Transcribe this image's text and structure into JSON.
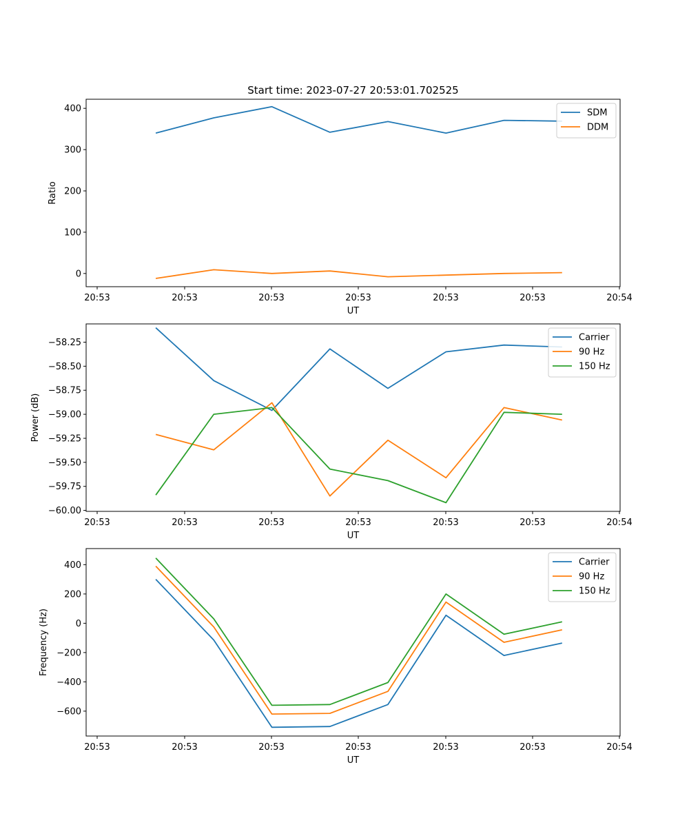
{
  "title": "Start time: 2023-07-27 20:53:01.702525",
  "colors": {
    "blue": "#1f77b4",
    "orange": "#ff7f0e",
    "green": "#2ca02c"
  },
  "chart_data": [
    {
      "type": "line",
      "xlabel": "UT",
      "ylabel": "Ratio",
      "x_tick_labels": [
        "20:53",
        "20:53",
        "20:53",
        "20:53",
        "20:53",
        "20:53",
        "20:54"
      ],
      "x": [
        1,
        2,
        3,
        4,
        5,
        6,
        7,
        8
      ],
      "xlim": [
        -0.2,
        9.0
      ],
      "ylim": [
        -32,
        422
      ],
      "y_ticks": [
        0,
        100,
        200,
        300,
        400
      ],
      "legend_position": "top-right",
      "series": [
        {
          "name": "SDM",
          "color": "#1f77b4",
          "values": [
            340,
            377,
            404,
            342,
            368,
            340,
            371,
            369
          ]
        },
        {
          "name": "DDM",
          "color": "#ff7f0e",
          "values": [
            -12,
            9,
            0,
            6,
            -8,
            -4,
            0,
            2
          ]
        }
      ]
    },
    {
      "type": "line",
      "xlabel": "UT",
      "ylabel": "Power (dB)",
      "x_tick_labels": [
        "20:53",
        "20:53",
        "20:53",
        "20:53",
        "20:53",
        "20:53",
        "20:54"
      ],
      "x": [
        1,
        2,
        3,
        4,
        5,
        6,
        7,
        8
      ],
      "xlim": [
        -0.2,
        9.0
      ],
      "ylim": [
        -60.01,
        -58.06
      ],
      "y_ticks": [
        -58.25,
        -58.5,
        -58.75,
        -59.0,
        -59.25,
        -59.5,
        -59.75,
        -60.0
      ],
      "y_tick_labels": [
        "−58.25",
        "−58.50",
        "−58.75",
        "−59.00",
        "−59.25",
        "−59.50",
        "−59.75",
        "−60.00"
      ],
      "legend_position": "top-right",
      "series": [
        {
          "name": "Carrier",
          "color": "#1f77b4",
          "values": [
            -58.1,
            -58.65,
            -58.96,
            -58.32,
            -58.73,
            -58.35,
            -58.28,
            -58.3
          ]
        },
        {
          "name": "90 Hz",
          "color": "#ff7f0e",
          "values": [
            -59.21,
            -59.37,
            -58.88,
            -59.85,
            -59.27,
            -59.66,
            -58.93,
            -59.06
          ]
        },
        {
          "name": "150 Hz",
          "color": "#2ca02c",
          "values": [
            -59.84,
            -59.0,
            -58.93,
            -59.57,
            -59.69,
            -59.92,
            -58.98,
            -59.0
          ]
        }
      ]
    },
    {
      "type": "line",
      "xlabel": "UT",
      "ylabel": "Frequency (Hz)",
      "x_tick_labels": [
        "20:53",
        "20:53",
        "20:53",
        "20:53",
        "20:53",
        "20:53",
        "20:54"
      ],
      "x": [
        1,
        2,
        3,
        4,
        5,
        6,
        7,
        8
      ],
      "xlim": [
        -0.2,
        9.0
      ],
      "ylim": [
        -770,
        510
      ],
      "y_ticks": [
        400,
        200,
        0,
        -200,
        -400,
        -600
      ],
      "y_tick_labels": [
        "400",
        "200",
        "0",
        "−200",
        "−400",
        "−600"
      ],
      "legend_position": "top-right",
      "series": [
        {
          "name": "Carrier",
          "color": "#1f77b4",
          "values": [
            300,
            -115,
            -710,
            -705,
            -555,
            55,
            -220,
            -135
          ]
        },
        {
          "name": "90 Hz",
          "color": "#ff7f0e",
          "values": [
            390,
            -25,
            -620,
            -615,
            -465,
            145,
            -130,
            -45
          ]
        },
        {
          "name": "150 Hz",
          "color": "#2ca02c",
          "values": [
            445,
            30,
            -560,
            -555,
            -405,
            200,
            -75,
            10
          ]
        }
      ]
    }
  ]
}
